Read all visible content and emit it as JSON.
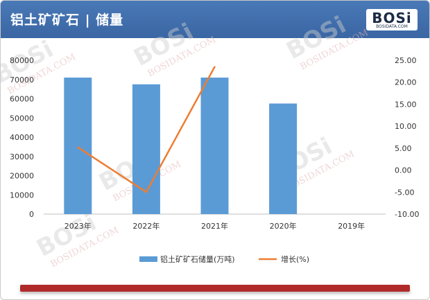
{
  "title": "铝土矿矿石 | 储量",
  "logo": {
    "word": "BOSi",
    "sub": "BOSIDATA.COM"
  },
  "colors": {
    "header": "#3f6eac",
    "bar": "#5b9bd5",
    "line": "#ed7d31",
    "footer": "#b02a2a"
  },
  "chart_data": {
    "type": "bar",
    "categories": [
      "2023年",
      "2022年",
      "2021年",
      "2020年",
      "2019年"
    ],
    "series": [
      {
        "name": "铝土矿矿石储量(万吨)",
        "type": "bar",
        "axis": "left",
        "values": [
          71000,
          67500,
          71000,
          57500,
          null
        ]
      },
      {
        "name": "增长(%)",
        "type": "line",
        "axis": "right",
        "values": [
          5.2,
          -5.0,
          23.5,
          null,
          null
        ]
      }
    ],
    "y_left": {
      "min": 0,
      "max": 80000,
      "step": 10000,
      "ticks": [
        "0",
        "10000",
        "20000",
        "30000",
        "40000",
        "50000",
        "60000",
        "70000",
        "80000"
      ]
    },
    "y_right": {
      "min": -10,
      "max": 25,
      "step": 5,
      "ticks": [
        "-10.00",
        "-5.00",
        "0.00",
        "5.00",
        "10.00",
        "15.00",
        "20.00",
        "25.00"
      ]
    },
    "grid": false,
    "legend": "bottom"
  }
}
